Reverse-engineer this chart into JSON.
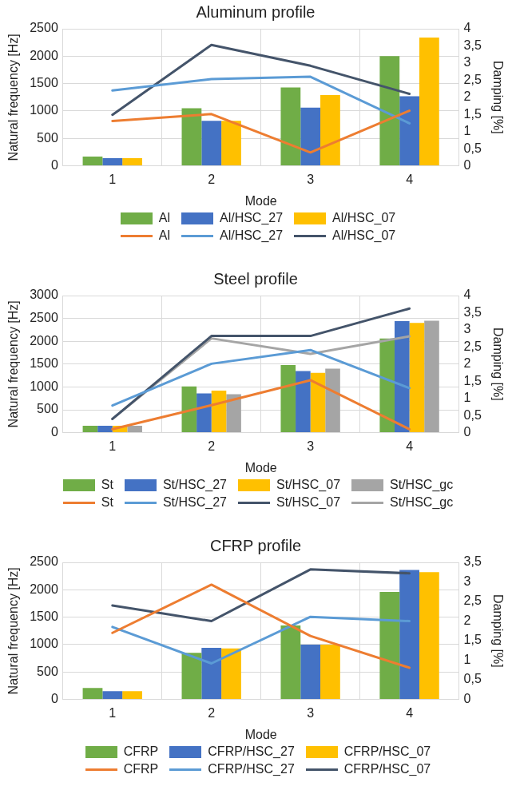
{
  "chart_data": [
    {
      "type": "bar",
      "title": "Aluminum profile",
      "xlabel": "Mode",
      "ylabel": "Natural frequency [Hz]",
      "y2label": "Damping [%]",
      "categories": [
        "1",
        "2",
        "3",
        "4"
      ],
      "ylim": [
        0,
        2500
      ],
      "yticks": [
        0,
        500,
        1000,
        1500,
        2000,
        2500
      ],
      "y2lim": [
        0,
        4
      ],
      "y2ticks": [
        0,
        {
          "value": 0.5,
          "label": "0,5"
        },
        1,
        {
          "value": 1.5,
          "label": "1,5"
        },
        2,
        {
          "value": 2.5,
          "label": "2,5"
        },
        3,
        {
          "value": 3.5,
          "label": "3,5"
        },
        4
      ],
      "grid": true,
      "legend": "bottom",
      "marker": "none",
      "series": [
        {
          "name": "Al",
          "color": "#70ad47",
          "values": [
            170,
            1050,
            1430,
            2000
          ]
        },
        {
          "name": "Al/HSC_27",
          "color": "#4472c4",
          "values": [
            140,
            820,
            1060,
            1270
          ]
        },
        {
          "name": "Al/HSC_07",
          "color": "#ffc000",
          "values": [
            140,
            820,
            1290,
            2340
          ]
        },
        {
          "name": "Al",
          "type": "line",
          "axis": "y2",
          "color": "#ed7d31",
          "values": [
            1.31,
            1.51,
            0.39,
            1.61
          ]
        },
        {
          "name": "Al/HSC_27",
          "type": "line",
          "axis": "y2",
          "color": "#5b9bd5",
          "values": [
            2.2,
            2.53,
            2.6,
            1.24
          ]
        },
        {
          "name": "Al/HSC_07",
          "type": "line",
          "axis": "y2",
          "color": "#44546a",
          "values": [
            1.49,
            3.53,
            2.92,
            2.1
          ]
        }
      ]
    },
    {
      "type": "bar",
      "title": "Steel profile",
      "xlabel": "Mode",
      "ylabel": "Natural frequency [Hz]",
      "y2label": "Damping [%]",
      "categories": [
        "1",
        "2",
        "3",
        "4"
      ],
      "ylim": [
        0,
        3000
      ],
      "yticks": [
        0,
        500,
        1000,
        1500,
        2000,
        2500,
        3000
      ],
      "y2lim": [
        0,
        4
      ],
      "y2ticks": [
        0,
        {
          "value": 0.5,
          "label": "0,5"
        },
        1,
        {
          "value": 1.5,
          "label": "1,5"
        },
        2,
        {
          "value": 2.5,
          "label": "2,5"
        },
        3,
        {
          "value": 3.5,
          "label": "3,5"
        },
        4
      ],
      "grid": true,
      "legend": "bottom",
      "marker": "none",
      "series": [
        {
          "name": "St",
          "color": "#70ad47",
          "values": [
            150,
            1010,
            1480,
            2060
          ]
        },
        {
          "name": "St/HSC_27",
          "color": "#4472c4",
          "values": [
            150,
            860,
            1350,
            2440
          ]
        },
        {
          "name": "St/HSC_07",
          "color": "#ffc000",
          "values": [
            150,
            920,
            1310,
            2400
          ]
        },
        {
          "name": "St/HSC_gc",
          "color": "#a5a5a5",
          "values": [
            150,
            840,
            1400,
            2450
          ]
        },
        {
          "name": "St",
          "type": "line",
          "axis": "y2",
          "color": "#ed7d31",
          "values": [
            0.1,
            0.8,
            1.53,
            0.1
          ]
        },
        {
          "name": "St/HSC_27",
          "type": "line",
          "axis": "y2",
          "color": "#5b9bd5",
          "values": [
            0.79,
            2.01,
            2.41,
            1.3
          ]
        },
        {
          "name": "St/HSC_07",
          "type": "line",
          "axis": "y2",
          "color": "#44546a",
          "values": [
            0.4,
            2.82,
            2.82,
            3.62
          ]
        },
        {
          "name": "St/HSC_gc",
          "type": "line",
          "axis": "y2",
          "color": "#a5a5a5",
          "values": [
            0.4,
            2.75,
            2.3,
            2.81
          ]
        }
      ]
    },
    {
      "type": "bar",
      "title": "CFRP profile",
      "xlabel": "Mode",
      "ylabel": "Natural frequency [Hz]",
      "y2label": "Damping [%]",
      "categories": [
        "1",
        "2",
        "3",
        "4"
      ],
      "ylim": [
        0,
        2500
      ],
      "yticks": [
        0,
        500,
        1000,
        1500,
        2000,
        2500
      ],
      "y2lim": [
        0,
        3.5
      ],
      "y2ticks": [
        0,
        {
          "value": 0.5,
          "label": "0,5"
        },
        1,
        {
          "value": 1.5,
          "label": "1,5"
        },
        2,
        {
          "value": 2.5,
          "label": "2,5"
        },
        3,
        {
          "value": 3.5,
          "label": "3,5"
        }
      ],
      "grid": true,
      "legend": "bottom",
      "marker": "none",
      "series": [
        {
          "name": "CFRP",
          "color": "#70ad47",
          "values": [
            210,
            850,
            1350,
            1960
          ]
        },
        {
          "name": "CFRP/HSC_27",
          "color": "#4472c4",
          "values": [
            150,
            940,
            1000,
            2360
          ]
        },
        {
          "name": "CFRP/HSC_07",
          "color": "#ffc000",
          "values": [
            150,
            930,
            1000,
            2320
          ]
        },
        {
          "name": "CFRP",
          "type": "line",
          "axis": "y2",
          "color": "#ed7d31",
          "values": [
            1.7,
            2.93,
            1.62,
            0.81
          ]
        },
        {
          "name": "CFRP/HSC_27",
          "type": "line",
          "axis": "y2",
          "color": "#5b9bd5",
          "values": [
            1.85,
            0.92,
            2.11,
            2.0
          ]
        },
        {
          "name": "CFRP/HSC_07",
          "type": "line",
          "axis": "y2",
          "color": "#44546a",
          "values": [
            2.4,
            2.0,
            3.32,
            3.22
          ]
        }
      ]
    }
  ]
}
